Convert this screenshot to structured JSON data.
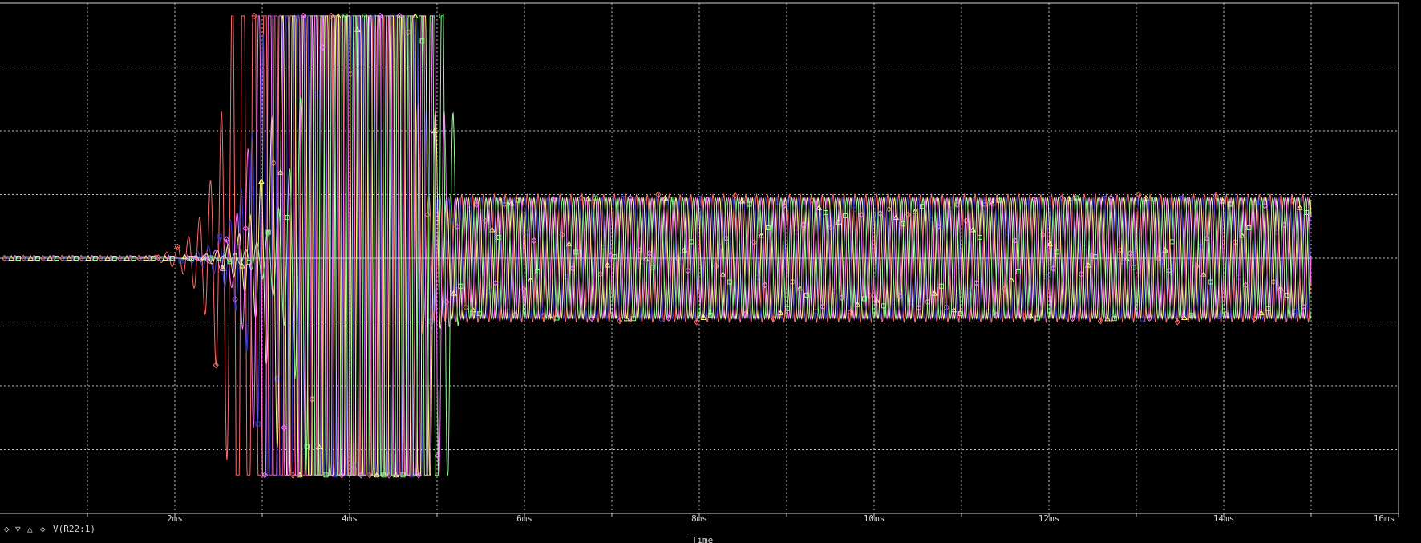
{
  "window": {
    "background": "#000000",
    "grid_color": "#bdbdbd"
  },
  "chart_data": {
    "type": "line",
    "title": "",
    "xlabel": "Time",
    "ylabel": "",
    "x_unit": "ms",
    "xlim": [
      0,
      16
    ],
    "x_ticks": [
      {
        "value": 2,
        "label": "2ms"
      },
      {
        "value": 4,
        "label": "4ms"
      },
      {
        "value": 6,
        "label": "6ms"
      },
      {
        "value": 8,
        "label": "8ms"
      },
      {
        "value": 10,
        "label": "10ms"
      },
      {
        "value": 12,
        "label": "12ms"
      },
      {
        "value": 14,
        "label": "14ms"
      },
      {
        "value": 16,
        "label": "16ms"
      }
    ],
    "ylim": [
      -4,
      4
    ],
    "grid": true,
    "legend": {
      "position": "bottom-left",
      "symbols": [
        "◇",
        "▽",
        "△",
        "◇"
      ],
      "symbol_colors": [
        "#ff6a6a",
        "#4040ff",
        "#ffff80",
        "#ff70ff"
      ],
      "text": "V(R22:1)"
    },
    "series": [
      {
        "color": "#ff6a6a",
        "marker": "diamond",
        "onset_ms": 1.6,
        "sat_start_ms": 2.7,
        "sat_end_ms": 4.6,
        "amplitude": 1.0,
        "peak_low": -3.4,
        "peak_high": 3.8,
        "freq_khz": 8.0,
        "phase": 0.0
      },
      {
        "color": "#3a3ad8",
        "marker": "square",
        "onset_ms": 1.9,
        "sat_start_ms": 3.1,
        "sat_end_ms": 4.7,
        "amplitude": 0.95,
        "peak_low": -3.4,
        "peak_high": 3.8,
        "freq_khz": 8.0,
        "phase": 1.2
      },
      {
        "color": "#ffff80",
        "marker": "triangle",
        "onset_ms": 2.1,
        "sat_start_ms": 3.3,
        "sat_end_ms": 4.8,
        "amplitude": 0.95,
        "peak_low": -3.4,
        "peak_high": 3.8,
        "freq_khz": 8.0,
        "phase": 2.4
      },
      {
        "color": "#ff70ff",
        "marker": "diamond",
        "onset_ms": 2.2,
        "sat_start_ms": 3.0,
        "sat_end_ms": 4.9,
        "amplitude": 0.95,
        "peak_low": -3.4,
        "peak_high": 3.8,
        "freq_khz": 8.0,
        "phase": 3.6
      },
      {
        "color": "#90ff90",
        "marker": "square",
        "onset_ms": 2.4,
        "sat_start_ms": 3.6,
        "sat_end_ms": 5.0,
        "amplitude": 0.95,
        "peak_low": -3.4,
        "peak_high": 3.8,
        "freq_khz": 8.0,
        "phase": 4.8
      }
    ],
    "end_ms": 15.0
  }
}
